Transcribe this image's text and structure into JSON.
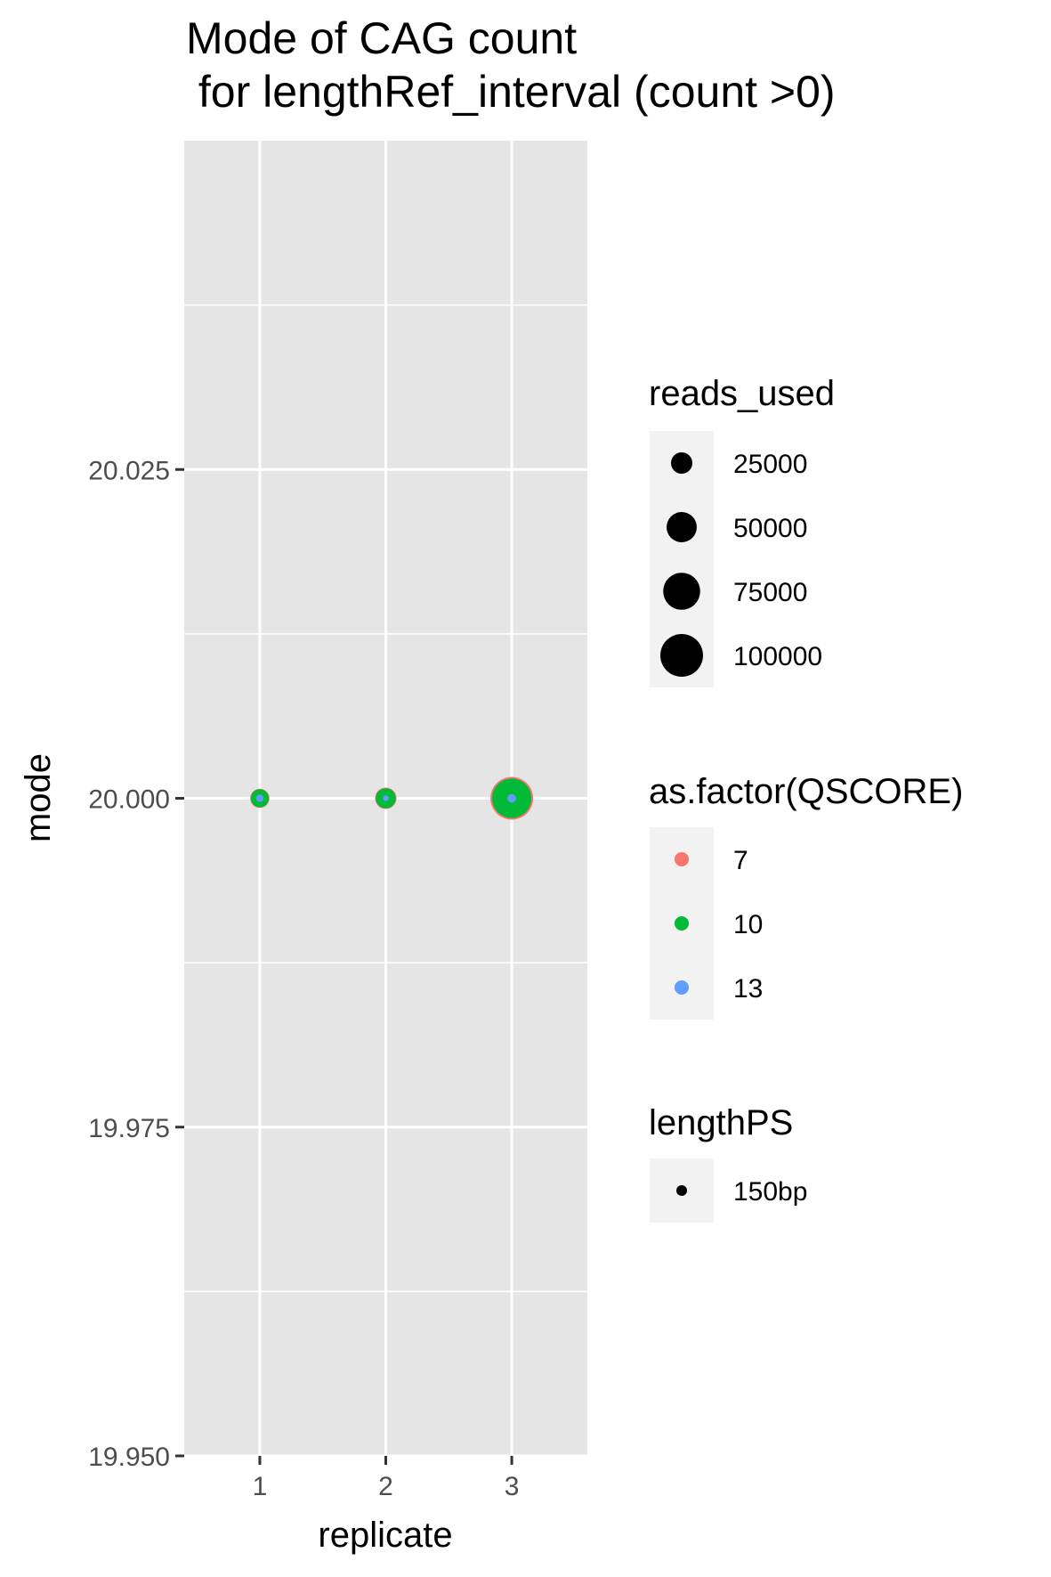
{
  "chart_data": {
    "type": "scatter",
    "title": "Mode of CAG count",
    "subtitle": " for lengthRef_interval (count >0)",
    "xlabel": "replicate",
    "ylabel": "mode",
    "x_ticks": [
      "1",
      "2",
      "3"
    ],
    "y_ticks": [
      "19.950",
      "19.975",
      "20.000",
      "20.025"
    ],
    "xlim": [
      0.4,
      3.6
    ],
    "ylim": [
      19.95,
      20.05
    ],
    "grid": true,
    "panel_background": "#e5e5e5",
    "series": [
      {
        "name": "7",
        "color": "#F8766D",
        "points": [
          {
            "x": 1,
            "y": 20.0,
            "reads_used": 20000
          },
          {
            "x": 2,
            "y": 20.0,
            "reads_used": 25000
          },
          {
            "x": 3,
            "y": 20.0,
            "reads_used": 100000
          }
        ]
      },
      {
        "name": "10",
        "color": "#00BA38",
        "points": [
          {
            "x": 1,
            "y": 20.0,
            "reads_used": 18000
          },
          {
            "x": 2,
            "y": 20.0,
            "reads_used": 22000
          },
          {
            "x": 3,
            "y": 20.0,
            "reads_used": 85000
          }
        ]
      },
      {
        "name": "13",
        "color": "#619CFF",
        "points": [
          {
            "x": 1,
            "y": 20.0,
            "reads_used": 3000
          },
          {
            "x": 2,
            "y": 20.0,
            "reads_used": 0
          },
          {
            "x": 3,
            "y": 20.0,
            "reads_used": 4000
          }
        ]
      }
    ],
    "legends": {
      "size": {
        "title": "reads_used",
        "breaks": [
          "25000",
          "50000",
          "75000",
          "100000"
        ],
        "values": [
          25000,
          50000,
          75000,
          100000
        ]
      },
      "color": {
        "title": "as.factor(QSCORE)",
        "breaks": [
          "7",
          "10",
          "13"
        ],
        "colors": [
          "#F8766D",
          "#00BA38",
          "#619CFF"
        ]
      },
      "shape": {
        "title": "lengthPS",
        "breaks": [
          "150bp"
        ]
      }
    },
    "legend_placement": "right"
  }
}
